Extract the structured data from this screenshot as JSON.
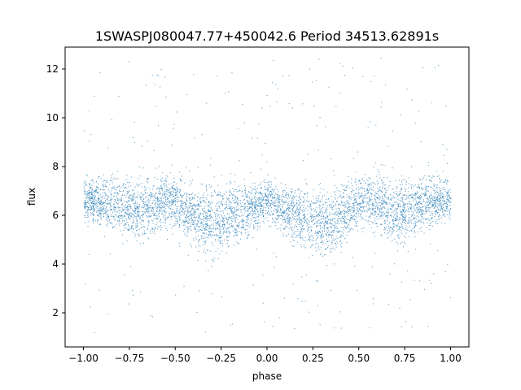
{
  "chart_data": {
    "type": "scatter",
    "title": "1SWASPJ080047.77+450042.6 Period 34513.62891s",
    "xlabel": "phase",
    "ylabel": "flux",
    "xlim": [
      -1.1,
      1.1
    ],
    "ylim": [
      0.6,
      12.9
    ],
    "x_ticks": [
      -1.0,
      -0.75,
      -0.5,
      -0.25,
      0.0,
      0.25,
      0.5,
      0.75,
      1.0
    ],
    "x_tick_labels": [
      "−1.00",
      "−0.75",
      "−0.50",
      "−0.25",
      "0.00",
      "0.25",
      "0.50",
      "0.75",
      "1.00"
    ],
    "y_ticks": [
      2,
      4,
      6,
      8,
      10,
      12
    ],
    "y_tick_labels": [
      "2",
      "4",
      "6",
      "8",
      "10",
      "12"
    ],
    "grid": false,
    "legend": "none",
    "point_color": "#1f77b4",
    "series": [
      {
        "phase_range": [
          -1.0,
          1.0
        ],
        "band_center": [
          [
            0.0,
            6.7
          ],
          [
            0.05,
            6.4
          ],
          [
            0.1,
            6.2
          ],
          [
            0.15,
            6.1
          ],
          [
            0.2,
            6.0
          ],
          [
            0.25,
            5.8
          ],
          [
            0.3,
            5.7
          ],
          [
            0.35,
            5.8
          ],
          [
            0.4,
            6.0
          ],
          [
            0.45,
            6.3
          ],
          [
            0.5,
            6.6
          ],
          [
            0.55,
            6.7
          ],
          [
            0.6,
            6.5
          ],
          [
            0.65,
            6.3
          ],
          [
            0.7,
            6.2
          ],
          [
            0.75,
            6.3
          ],
          [
            0.8,
            6.4
          ],
          [
            0.85,
            6.5
          ],
          [
            0.9,
            6.6
          ],
          [
            0.95,
            6.6
          ],
          [
            1.0,
            6.7
          ]
        ],
        "band_halfwidth": [
          [
            0.0,
            1.3
          ],
          [
            0.1,
            1.6
          ],
          [
            0.2,
            1.9
          ],
          [
            0.3,
            2.1
          ],
          [
            0.4,
            1.9
          ],
          [
            0.5,
            1.6
          ],
          [
            0.6,
            1.8
          ],
          [
            0.7,
            2.0
          ],
          [
            0.8,
            1.8
          ],
          [
            0.9,
            1.5
          ],
          [
            1.0,
            1.3
          ]
        ],
        "outlier_range": [
          1.2,
          12.5
        ]
      }
    ]
  }
}
